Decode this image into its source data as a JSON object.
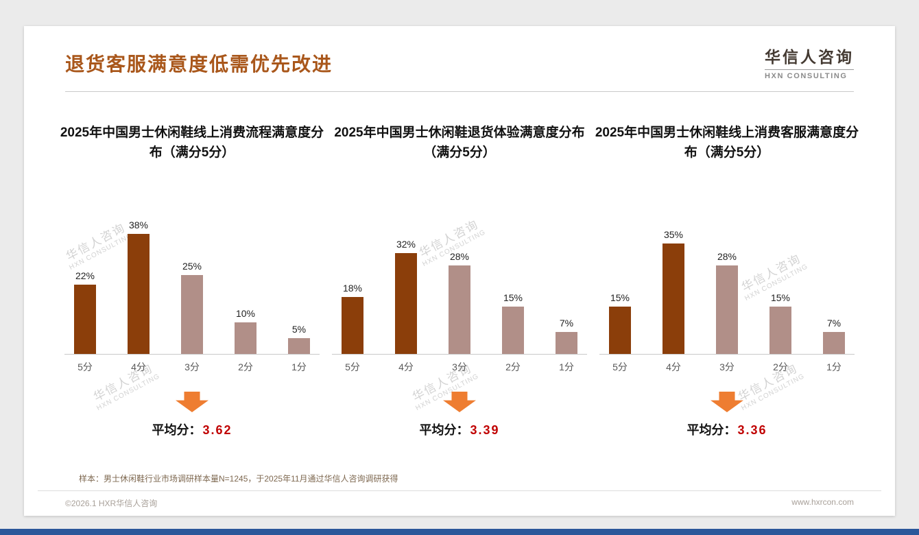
{
  "page": {
    "title": "退货客服满意度低需优先改进",
    "logo": {
      "name": "华信人咨询",
      "sub": "HXN CONSULTING"
    },
    "watermark": {
      "line1": "华信人咨询",
      "line2": "HXN CONSULTING"
    },
    "footnote": "样本：男士休闲鞋行业市场调研样本量N=1245，于2025年11月通过华信人咨询调研获得",
    "footer_left": "©2026.1 HXR华信人咨询",
    "footer_right": "www.hxrcon.com"
  },
  "colors": {
    "title": "#A9571B",
    "bar_dark": "#8B3E0A",
    "bar_light": "#B18F88",
    "arrow": "#EE7D31",
    "average_value": "#C00000",
    "bottom_bar": "#2B579A"
  },
  "chart_data": [
    {
      "type": "bar",
      "title": "2025年中国男士休闲鞋线上消费流程满意度分布（满分5分）",
      "categories": [
        "5分",
        "4分",
        "3分",
        "2分",
        "1分"
      ],
      "values": [
        22,
        38,
        25,
        10,
        5
      ],
      "value_labels": [
        "22%",
        "38%",
        "25%",
        "10%",
        "5%"
      ],
      "bar_colors": [
        "#8B3E0A",
        "#8B3E0A",
        "#B18F88",
        "#B18F88",
        "#B18F88"
      ],
      "xlabel": "",
      "ylabel": "",
      "ylim": [
        0,
        40
      ],
      "grid": false,
      "legend": false,
      "average_label": "平均分：",
      "average": "3.62"
    },
    {
      "type": "bar",
      "title": "2025年中国男士休闲鞋退货体验满意度分布（满分5分）",
      "categories": [
        "5分",
        "4分",
        "3分",
        "2分",
        "1分"
      ],
      "values": [
        18,
        32,
        28,
        15,
        7
      ],
      "value_labels": [
        "18%",
        "32%",
        "28%",
        "15%",
        "7%"
      ],
      "bar_colors": [
        "#8B3E0A",
        "#8B3E0A",
        "#B18F88",
        "#B18F88",
        "#B18F88"
      ],
      "xlabel": "",
      "ylabel": "",
      "ylim": [
        0,
        40
      ],
      "grid": false,
      "legend": false,
      "average_label": "平均分：",
      "average": "3.39"
    },
    {
      "type": "bar",
      "title": "2025年中国男士休闲鞋线上消费客服满意度分布（满分5分）",
      "categories": [
        "5分",
        "4分",
        "3分",
        "2分",
        "1分"
      ],
      "values": [
        15,
        35,
        28,
        15,
        7
      ],
      "value_labels": [
        "15%",
        "35%",
        "28%",
        "15%",
        "7%"
      ],
      "bar_colors": [
        "#8B3E0A",
        "#8B3E0A",
        "#B18F88",
        "#B18F88",
        "#B18F88"
      ],
      "xlabel": "",
      "ylabel": "",
      "ylim": [
        0,
        40
      ],
      "grid": false,
      "legend": false,
      "average_label": "平均分：",
      "average": "3.36"
    }
  ]
}
